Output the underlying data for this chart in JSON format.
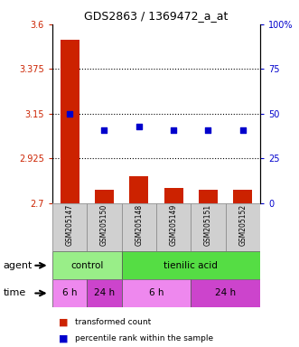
{
  "title": "GDS2863 / 1369472_a_at",
  "samples": [
    "GSM205147",
    "GSM205150",
    "GSM205148",
    "GSM205149",
    "GSM205151",
    "GSM205152"
  ],
  "bar_values": [
    3.52,
    2.765,
    2.835,
    2.775,
    2.765,
    2.765
  ],
  "percentile_values": [
    50,
    41,
    43,
    41,
    41,
    41
  ],
  "ylim_left": [
    2.7,
    3.6
  ],
  "ylim_right": [
    0,
    100
  ],
  "yticks_left": [
    2.7,
    2.925,
    3.15,
    3.375,
    3.6
  ],
  "yticks_right": [
    0,
    25,
    50,
    75,
    100
  ],
  "ytick_labels_left": [
    "2.7",
    "2.925",
    "3.15",
    "3.375",
    "3.6"
  ],
  "ytick_labels_right": [
    "0",
    "25",
    "50",
    "75",
    "100%"
  ],
  "hline_values": [
    2.925,
    3.15,
    3.375
  ],
  "bar_color": "#cc2200",
  "dot_color": "#0000cc",
  "agent_row": [
    {
      "label": "control",
      "span": [
        0,
        2
      ],
      "color": "#99ee88"
    },
    {
      "label": "tienilic acid",
      "span": [
        2,
        6
      ],
      "color": "#55dd44"
    }
  ],
  "time_row": [
    {
      "label": "6 h",
      "span": [
        0,
        1
      ],
      "color": "#ee88ee"
    },
    {
      "label": "24 h",
      "span": [
        1,
        2
      ],
      "color": "#cc44cc"
    },
    {
      "label": "6 h",
      "span": [
        2,
        4
      ],
      "color": "#ee88ee"
    },
    {
      "label": "24 h",
      "span": [
        4,
        6
      ],
      "color": "#cc44cc"
    }
  ],
  "legend_bar_label": "transformed count",
  "legend_dot_label": "percentile rank within the sample",
  "left_color": "#cc2200",
  "right_color": "#0000cc"
}
